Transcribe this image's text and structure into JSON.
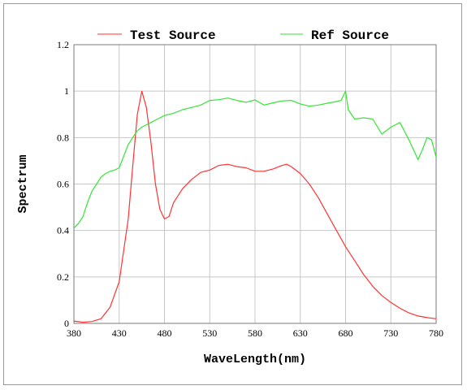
{
  "chart_data": {
    "type": "line",
    "xlabel": "WaveLength(nm)",
    "ylabel": "Spectrum",
    "xlim": [
      380,
      780
    ],
    "ylim": [
      0,
      1.2
    ],
    "x_ticks": [
      "380",
      "430",
      "480",
      "530",
      "580",
      "630",
      "680",
      "730",
      "780"
    ],
    "y_ticks": [
      "0",
      "0.2",
      "0.4",
      "0.6",
      "0.8",
      "1",
      "1.2"
    ],
    "grid": true,
    "legend_position": "top",
    "series": [
      {
        "name": "Test Source",
        "color": "#ff3333",
        "points": [
          [
            380,
            0.01
          ],
          [
            390,
            0.005
          ],
          [
            400,
            0.008
          ],
          [
            410,
            0.02
          ],
          [
            420,
            0.07
          ],
          [
            430,
            0.18
          ],
          [
            440,
            0.45
          ],
          [
            445,
            0.68
          ],
          [
            450,
            0.9
          ],
          [
            455,
            1.0
          ],
          [
            460,
            0.93
          ],
          [
            465,
            0.78
          ],
          [
            470,
            0.6
          ],
          [
            475,
            0.49
          ],
          [
            480,
            0.45
          ],
          [
            485,
            0.46
          ],
          [
            490,
            0.52
          ],
          [
            500,
            0.58
          ],
          [
            510,
            0.62
          ],
          [
            520,
            0.65
          ],
          [
            530,
            0.66
          ],
          [
            540,
            0.68
          ],
          [
            550,
            0.685
          ],
          [
            560,
            0.675
          ],
          [
            570,
            0.67
          ],
          [
            580,
            0.655
          ],
          [
            590,
            0.655
          ],
          [
            600,
            0.665
          ],
          [
            610,
            0.68
          ],
          [
            615,
            0.685
          ],
          [
            620,
            0.675
          ],
          [
            630,
            0.645
          ],
          [
            640,
            0.6
          ],
          [
            650,
            0.54
          ],
          [
            660,
            0.47
          ],
          [
            670,
            0.4
          ],
          [
            680,
            0.33
          ],
          [
            690,
            0.27
          ],
          [
            700,
            0.21
          ],
          [
            710,
            0.16
          ],
          [
            720,
            0.12
          ],
          [
            730,
            0.09
          ],
          [
            740,
            0.065
          ],
          [
            750,
            0.045
          ],
          [
            760,
            0.032
          ],
          [
            770,
            0.025
          ],
          [
            780,
            0.02
          ]
        ]
      },
      {
        "name": "Ref Source",
        "color": "#33e633",
        "points": [
          [
            380,
            0.41
          ],
          [
            385,
            0.43
          ],
          [
            390,
            0.46
          ],
          [
            395,
            0.52
          ],
          [
            400,
            0.57
          ],
          [
            405,
            0.6
          ],
          [
            410,
            0.63
          ],
          [
            415,
            0.645
          ],
          [
            420,
            0.655
          ],
          [
            425,
            0.66
          ],
          [
            430,
            0.67
          ],
          [
            435,
            0.72
          ],
          [
            440,
            0.77
          ],
          [
            445,
            0.8
          ],
          [
            450,
            0.83
          ],
          [
            455,
            0.845
          ],
          [
            460,
            0.855
          ],
          [
            465,
            0.865
          ],
          [
            470,
            0.875
          ],
          [
            480,
            0.895
          ],
          [
            490,
            0.905
          ],
          [
            500,
            0.92
          ],
          [
            510,
            0.93
          ],
          [
            520,
            0.94
          ],
          [
            530,
            0.96
          ],
          [
            540,
            0.963
          ],
          [
            550,
            0.97
          ],
          [
            560,
            0.96
          ],
          [
            570,
            0.952
          ],
          [
            580,
            0.962
          ],
          [
            590,
            0.94
          ],
          [
            600,
            0.95
          ],
          [
            610,
            0.958
          ],
          [
            620,
            0.96
          ],
          [
            630,
            0.945
          ],
          [
            640,
            0.935
          ],
          [
            650,
            0.94
          ],
          [
            660,
            0.948
          ],
          [
            670,
            0.955
          ],
          [
            675,
            0.96
          ],
          [
            680,
            1.0
          ],
          [
            683,
            0.92
          ],
          [
            690,
            0.88
          ],
          [
            700,
            0.885
          ],
          [
            710,
            0.88
          ],
          [
            720,
            0.815
          ],
          [
            730,
            0.845
          ],
          [
            740,
            0.865
          ],
          [
            750,
            0.79
          ],
          [
            760,
            0.705
          ],
          [
            765,
            0.75
          ],
          [
            770,
            0.8
          ],
          [
            775,
            0.79
          ],
          [
            780,
            0.715
          ]
        ]
      }
    ]
  }
}
